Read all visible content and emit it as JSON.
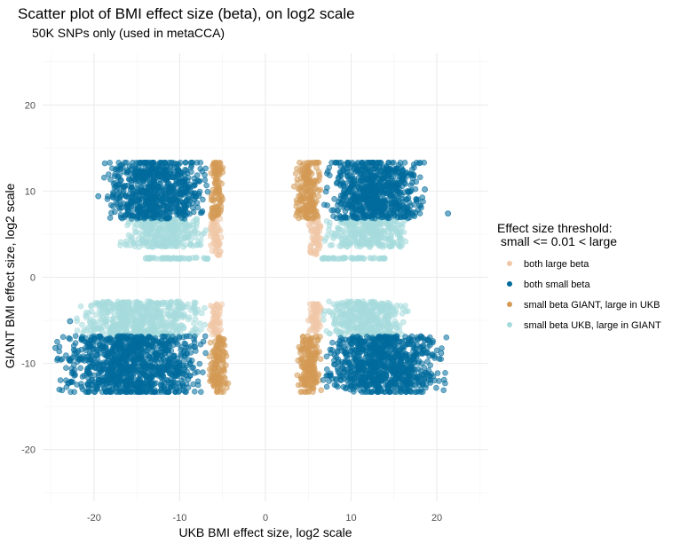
{
  "chart_data": {
    "type": "scatter",
    "title": "Scatter plot of BMI effect size (beta), on log2 scale",
    "subtitle": "50K SNPs only (used in metaCCA)",
    "xlabel": "UKB BMI effect size, log2 scale",
    "ylabel": "GIANT BMI effect size, log2 scale",
    "xlim": [
      -26,
      26
    ],
    "ylim": [
      -26,
      26
    ],
    "x_ticks": [
      -20,
      -10,
      0,
      10,
      20
    ],
    "y_ticks": [
      -20,
      -10,
      0,
      10,
      20
    ],
    "grid": true,
    "legend": {
      "position": "right",
      "title_line1": "Effect size threshold:",
      "title_line2": " small <= 0.01 < large"
    },
    "series": [
      {
        "name": "both large beta",
        "color": "#F0C8A8",
        "regions": [
          {
            "x": [
              -6.6,
              -5.0
            ],
            "y": [
              2.5,
              6.8
            ]
          },
          {
            "x": [
              5.0,
              6.6
            ],
            "y": [
              2.5,
              6.8
            ]
          },
          {
            "x": [
              -6.6,
              -5.0
            ],
            "y": [
              -6.8,
              -3.0
            ]
          },
          {
            "x": [
              5.0,
              6.6
            ],
            "y": [
              -6.8,
              -3.0
            ]
          }
        ]
      },
      {
        "name": "both small beta",
        "color": "#006B9C",
        "regions": [
          {
            "x": [
              -19,
              -6.6
            ],
            "y": [
              6.8,
              13.3
            ]
          },
          {
            "x": [
              6.6,
              19
            ],
            "y": [
              6.8,
              13.3
            ]
          },
          {
            "x": [
              -24.5,
              -6.6
            ],
            "y": [
              -13.3,
              -6.8
            ]
          },
          {
            "x": [
              6.6,
              21.3
            ],
            "y": [
              -13.3,
              -6.8
            ]
          }
        ]
      },
      {
        "name": "small beta GIANT, large in UKB",
        "color": "#D49A55",
        "regions": [
          {
            "x": [
              -6.6,
              -4.8
            ],
            "y": [
              6.8,
              13.3
            ]
          },
          {
            "x": [
              3.3,
              6.6
            ],
            "y": [
              6.8,
              13.3
            ]
          },
          {
            "x": [
              -6.6,
              -4.3
            ],
            "y": [
              -13.3,
              -6.8
            ]
          },
          {
            "x": [
              3.5,
              6.6
            ],
            "y": [
              -13.3,
              -6.8
            ]
          }
        ]
      },
      {
        "name": "small beta UKB, large in GIANT",
        "color": "#A6DBDD",
        "regions": [
          {
            "x": [
              -17,
              -6.6
            ],
            "y": [
              3.5,
              6.8
            ]
          },
          {
            "x": [
              6.6,
              17
            ],
            "y": [
              3.5,
              6.8
            ]
          },
          {
            "x": [
              -22.5,
              -6.6
            ],
            "y": [
              -6.8,
              -2.8
            ]
          },
          {
            "x": [
              6.6,
              17
            ],
            "y": [
              -6.8,
              -2.8
            ]
          },
          {
            "x": [
              -14,
              -6.6
            ],
            "y": [
              2.2,
              2.2
            ]
          },
          {
            "x": [
              6.6,
              14
            ],
            "y": [
              2.2,
              2.2
            ]
          }
        ]
      }
    ]
  }
}
